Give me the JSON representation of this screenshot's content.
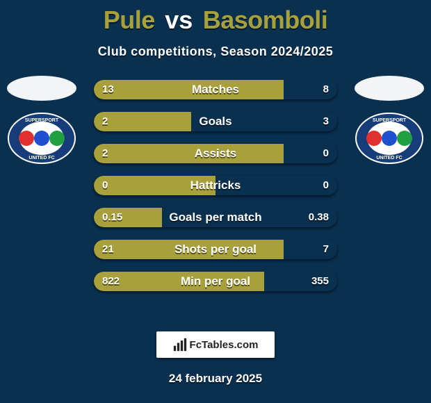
{
  "title": {
    "player1": "Pule",
    "vs": "vs",
    "player2": "Basomboli"
  },
  "subtitle": "Club competitions, Season 2024/2025",
  "date": "24 february 2025",
  "brand": "FcTables.com",
  "colors": {
    "player1": "#a8a13b",
    "player2": "#0a3050",
    "player1_text": "#ffffff",
    "player2_text": "#ffffff",
    "bg": "#0a3050",
    "badge_blue": "#163c7a",
    "badge_white": "#ffffff",
    "badge_accent": "#e03030"
  },
  "club1": {
    "name": "SuperSport United FC"
  },
  "club2": {
    "name": "SuperSport United FC"
  },
  "stats": [
    {
      "label": "Matches",
      "p1": "13",
      "p2": "8",
      "p1_ratio": 0.78
    },
    {
      "label": "Goals",
      "p1": "2",
      "p2": "3",
      "p1_ratio": 0.4
    },
    {
      "label": "Assists",
      "p1": "2",
      "p2": "0",
      "p1_ratio": 0.78
    },
    {
      "label": "Hattricks",
      "p1": "0",
      "p2": "0",
      "p1_ratio": 0.5
    },
    {
      "label": "Goals per match",
      "p1": "0.15",
      "p2": "0.38",
      "p1_ratio": 0.28
    },
    {
      "label": "Shots per goal",
      "p1": "21",
      "p2": "7",
      "p1_ratio": 0.78
    },
    {
      "label": "Min per goal",
      "p1": "822",
      "p2": "355",
      "p1_ratio": 0.7
    }
  ]
}
